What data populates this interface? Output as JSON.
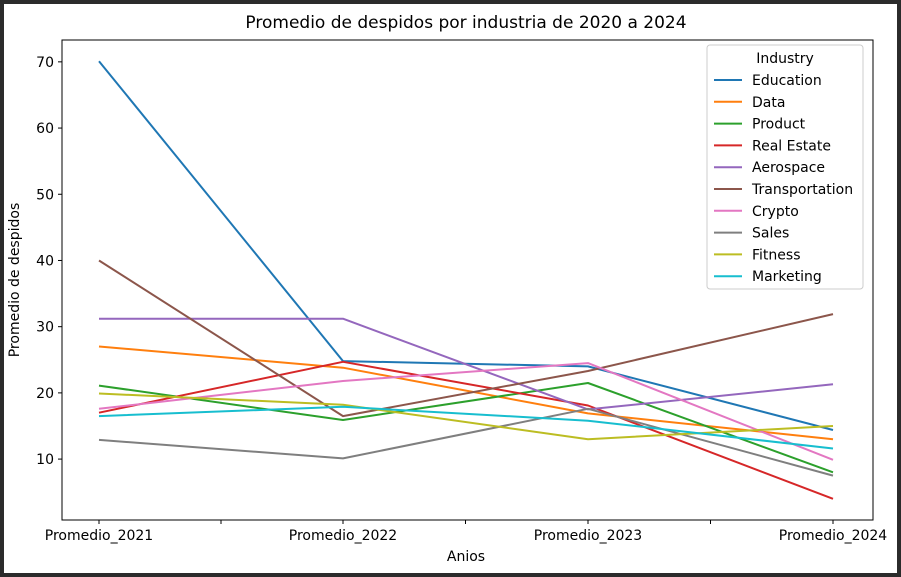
{
  "chart_data": {
    "type": "line",
    "title": "Promedio de despidos por industria de 2020 a 2024",
    "xlabel": "Anios",
    "ylabel": "Promedio de despidos",
    "categories": [
      "Promedio_2021",
      "Promedio_2022",
      "Promedio_2023",
      "Promedio_2024"
    ],
    "yticks": [
      10,
      20,
      30,
      40,
      50,
      60,
      70
    ],
    "ylim": [
      0.8,
      73.3
    ],
    "grid": false,
    "legend": {
      "title": "Industry",
      "placement": "top-right"
    },
    "series": [
      {
        "name": "Education",
        "color": "#1f77b4",
        "values": [
          70.1,
          24.8,
          24.0,
          14.4
        ]
      },
      {
        "name": "Data",
        "color": "#ff7f0e",
        "values": [
          27.0,
          23.8,
          16.9,
          13.0
        ]
      },
      {
        "name": "Product",
        "color": "#2ca02c",
        "values": [
          21.1,
          15.9,
          21.5,
          8.0
        ]
      },
      {
        "name": "Real Estate",
        "color": "#d62728",
        "values": [
          17.0,
          24.7,
          18.1,
          4.0
        ]
      },
      {
        "name": "Aerospace",
        "color": "#9467bd",
        "values": [
          31.2,
          31.2,
          17.5,
          21.3
        ]
      },
      {
        "name": "Transportation",
        "color": "#8c564b",
        "values": [
          40.0,
          16.5,
          23.3,
          31.9
        ]
      },
      {
        "name": "Crypto",
        "color": "#e377c2",
        "values": [
          17.6,
          21.8,
          24.5,
          9.9
        ]
      },
      {
        "name": "Sales",
        "color": "#7f7f7f",
        "values": [
          12.9,
          10.1,
          17.6,
          7.5
        ]
      },
      {
        "name": "Fitness",
        "color": "#bcbd22",
        "values": [
          19.9,
          18.2,
          13.0,
          15.0
        ]
      },
      {
        "name": "Marketing",
        "color": "#17becf",
        "values": [
          16.5,
          17.9,
          15.8,
          11.6
        ]
      }
    ]
  }
}
